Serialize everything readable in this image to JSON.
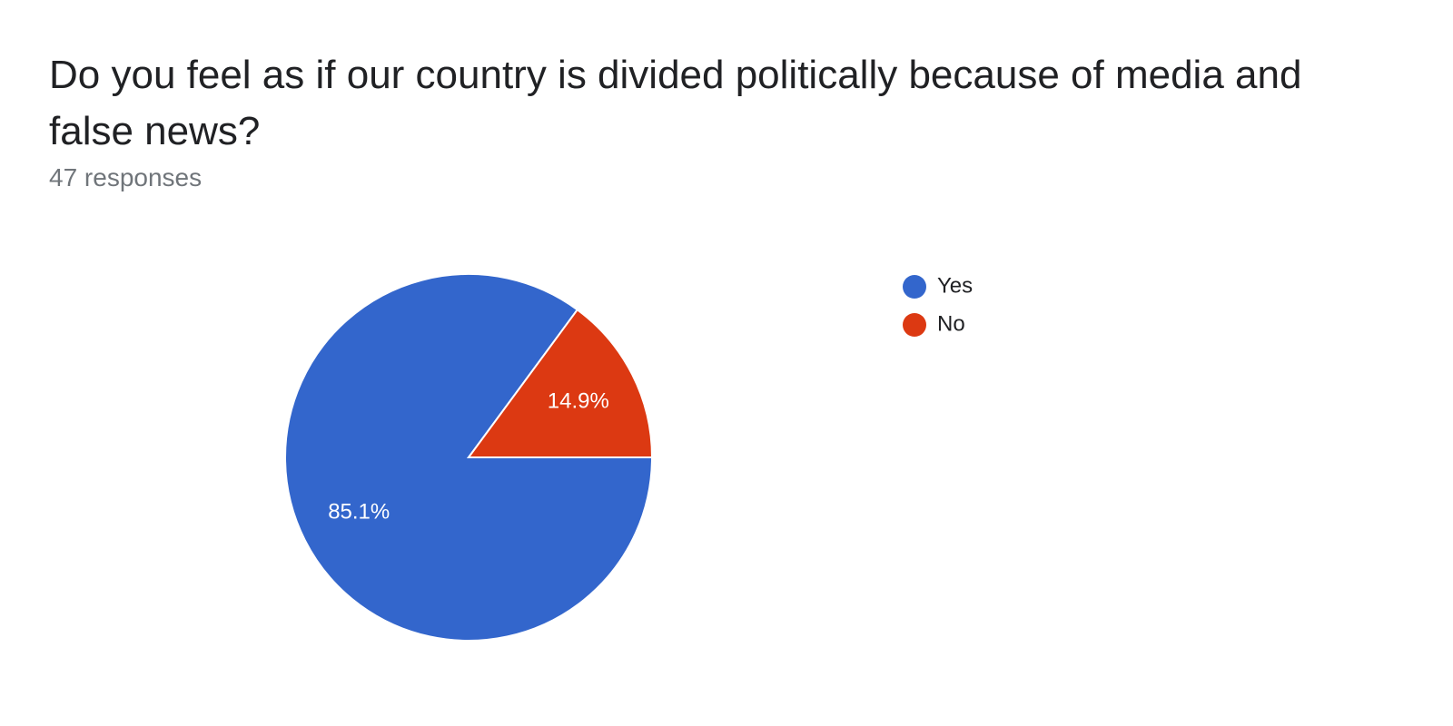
{
  "chart_data": {
    "type": "pie",
    "title": "Do you feel as if our country is divided politically because of media and false news?",
    "subtitle": "47 responses",
    "categories": [
      "Yes",
      "No"
    ],
    "values": [
      85.1,
      14.9
    ],
    "value_labels": [
      "85.1%",
      "14.9%"
    ],
    "colors": [
      "#3366cc",
      "#dc3912"
    ],
    "legend": "right"
  }
}
